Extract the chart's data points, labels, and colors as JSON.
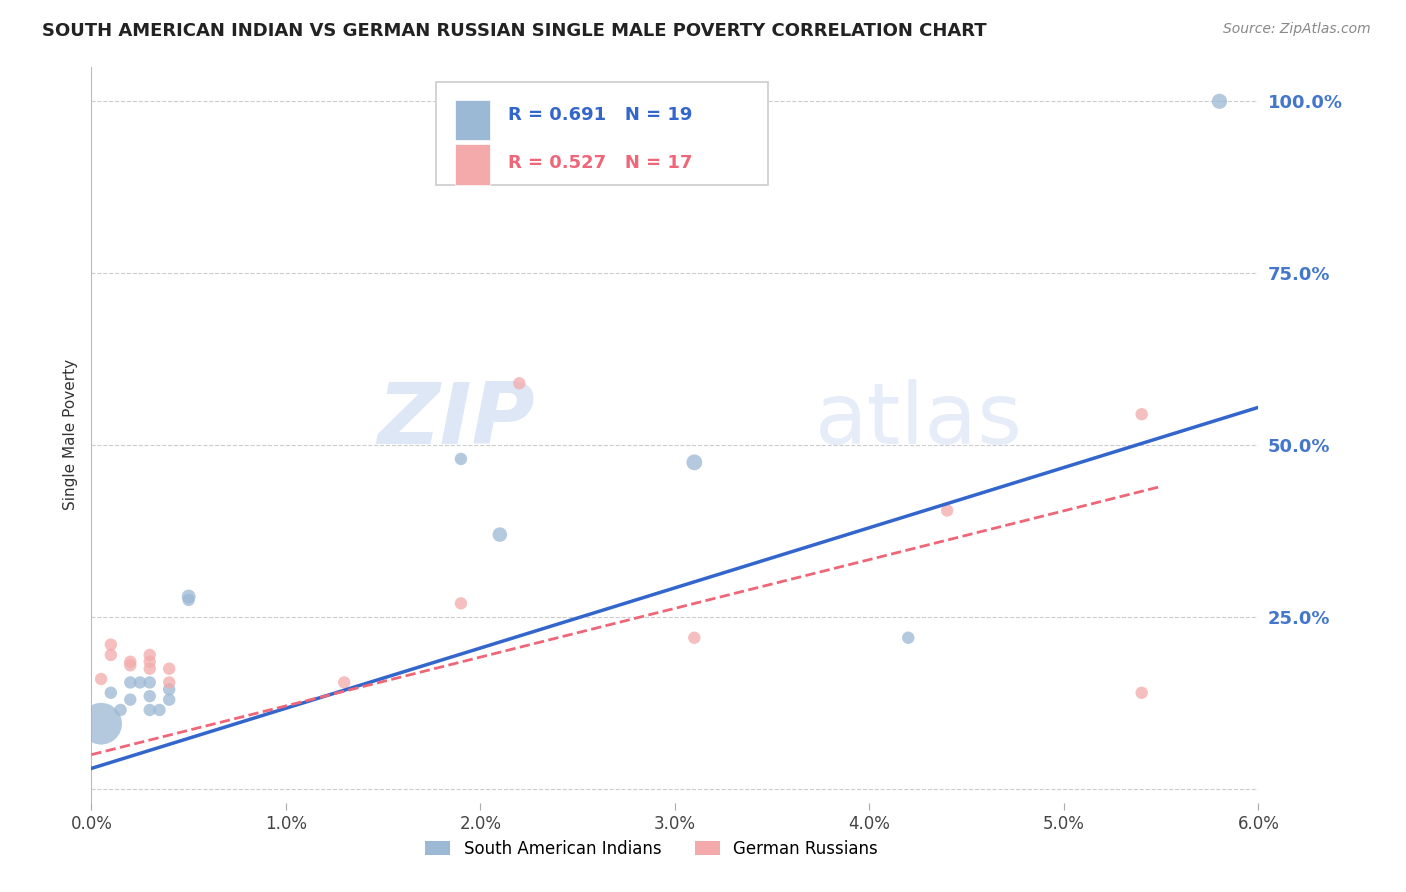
{
  "title": "SOUTH AMERICAN INDIAN VS GERMAN RUSSIAN SINGLE MALE POVERTY CORRELATION CHART",
  "source": "Source: ZipAtlas.com",
  "ylabel": "Single Male Poverty",
  "legend_label1": "South American Indians",
  "legend_label2": "German Russians",
  "R1": 0.691,
  "N1": 19,
  "R2": 0.527,
  "N2": 17,
  "xlim": [
    0.0,
    0.06
  ],
  "ylim": [
    -0.02,
    1.05
  ],
  "xticks": [
    0.0,
    0.01,
    0.02,
    0.03,
    0.04,
    0.05,
    0.06
  ],
  "ytick_positions": [
    0.0,
    0.25,
    0.5,
    0.75,
    1.0
  ],
  "ytick_labels": [
    "",
    "25.0%",
    "50.0%",
    "75.0%",
    "100.0%"
  ],
  "xtick_labels": [
    "0.0%",
    "1.0%",
    "2.0%",
    "3.0%",
    "4.0%",
    "5.0%",
    "6.0%"
  ],
  "color_blue": "#9BB8D4",
  "color_pink": "#F4AAAA",
  "color_blue_line": "#3366CC",
  "color_pink_line": "#EE6677",
  "color_ytick_label": "#4477CC",
  "color_grid": "#CCCCCC",
  "background_color": "#FFFFFF",
  "watermark_text": "ZIPatlas",
  "blue_line_x0": 0.0,
  "blue_line_y0": 0.03,
  "blue_line_x1": 0.06,
  "blue_line_y1": 0.555,
  "pink_line_x0": 0.0,
  "pink_line_y0": 0.05,
  "pink_line_x1": 0.055,
  "pink_line_y1": 0.44,
  "blue_points_x": [
    0.0005,
    0.001,
    0.0015,
    0.002,
    0.002,
    0.0025,
    0.003,
    0.003,
    0.003,
    0.0035,
    0.004,
    0.004,
    0.005,
    0.005,
    0.019,
    0.021,
    0.031,
    0.042,
    0.058
  ],
  "blue_points_y": [
    0.095,
    0.14,
    0.115,
    0.13,
    0.155,
    0.155,
    0.115,
    0.135,
    0.155,
    0.115,
    0.145,
    0.13,
    0.275,
    0.28,
    0.48,
    0.37,
    0.475,
    0.22,
    1.0
  ],
  "blue_sizes": [
    900,
    80,
    80,
    80,
    80,
    80,
    80,
    80,
    80,
    80,
    80,
    80,
    80,
    100,
    80,
    110,
    130,
    80,
    120
  ],
  "pink_points_x": [
    0.0005,
    0.001,
    0.001,
    0.002,
    0.002,
    0.003,
    0.003,
    0.003,
    0.004,
    0.004,
    0.013,
    0.019,
    0.022,
    0.031,
    0.044,
    0.054,
    0.054
  ],
  "pink_points_y": [
    0.16,
    0.195,
    0.21,
    0.185,
    0.18,
    0.195,
    0.175,
    0.185,
    0.155,
    0.175,
    0.155,
    0.27,
    0.59,
    0.22,
    0.405,
    0.14,
    0.545
  ],
  "pink_sizes": [
    80,
    80,
    80,
    80,
    80,
    80,
    80,
    80,
    80,
    80,
    80,
    80,
    80,
    80,
    80,
    80,
    80
  ]
}
